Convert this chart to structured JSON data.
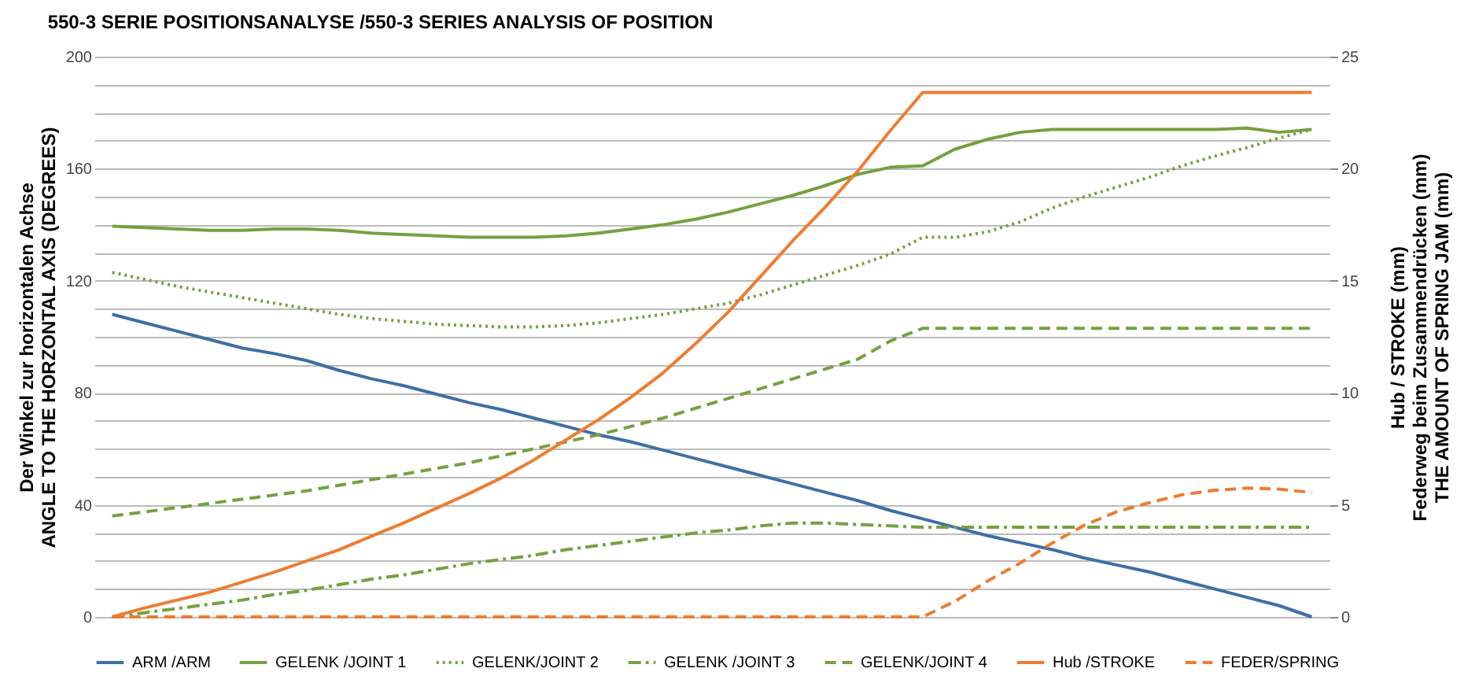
{
  "chart_data": {
    "type": "line",
    "title": "550-3  SERIE POSITIONSANALYSE /550-3 SERIES ANALYSIS OF POSITION",
    "ylabel": "Der Winkel zur horizontalen Achse\nANGLE TO THE HORZONTAL AXIS  (DEGREES)",
    "y2label": "Hub  / STROKE  (mm)\nFederweg beim Zusammendrücken (mm)\nTHE AMOUNT OF SPRING JAM (mm)",
    "categories": [
      null,
      null,
      null,
      null,
      null,
      null,
      null,
      null,
      null,
      null,
      null,
      null,
      null,
      null,
      null,
      null,
      null,
      null,
      null,
      null,
      null,
      null,
      null,
      null,
      null,
      null,
      null,
      null,
      null,
      null,
      null,
      null,
      null,
      null,
      null,
      null,
      null,
      null
    ],
    "ylim": [
      0,
      200
    ],
    "yticks": [
      0,
      40,
      80,
      120,
      160,
      200
    ],
    "y2lim": [
      0,
      25
    ],
    "y2ticks": [
      0,
      5,
      10,
      15,
      20,
      25
    ],
    "grid": true,
    "legend": "bottom",
    "tick_labels": "y",
    "series": [
      {
        "name": "ARM /ARM",
        "color": "#3f6ea5",
        "line_style": "solid",
        "values": [
          108,
          105,
          102,
          99,
          96,
          94,
          91.5,
          88,
          85,
          82.5,
          79.5,
          76.5,
          74,
          71,
          68,
          65,
          62.5,
          59.5,
          56.5,
          53.5,
          50.5,
          47.5,
          44.5,
          41.5,
          38,
          35,
          32,
          29,
          26.5,
          24,
          21,
          18.5,
          16,
          13,
          10,
          7,
          4,
          0
        ]
      },
      {
        "name": "GELENK /JOINT 1",
        "color": "#77a040",
        "line_style": "solid",
        "values": [
          139.5,
          139,
          138.5,
          138,
          138,
          138.5,
          138.5,
          138,
          137,
          136.5,
          136,
          135.5,
          135.5,
          135.5,
          136,
          137,
          138.5,
          140,
          142,
          144.5,
          147.5,
          150.5,
          154,
          158,
          160.5,
          161,
          167,
          170.5,
          173,
          174,
          174,
          174,
          174,
          174,
          174,
          174.5,
          173,
          174
        ]
      },
      {
        "name": "GELENK/JOINT 2",
        "color": "#77a040",
        "line_style": "dotted",
        "values": [
          123,
          120.5,
          118,
          116,
          114,
          112,
          110,
          108,
          106.5,
          105.5,
          104.5,
          104,
          103.5,
          103.5,
          104,
          105,
          106.5,
          108,
          110,
          112,
          115,
          118.5,
          122,
          125.5,
          129.5,
          135.5,
          135.5,
          137.5,
          141,
          146,
          150,
          153.5,
          157,
          161,
          164.5,
          167.5,
          171,
          174
        ]
      },
      {
        "name": "GELENK /JOINT 3",
        "color": "#77a040",
        "line_style": "dashdot",
        "values": [
          0,
          1.5,
          3,
          4.5,
          6,
          8,
          9.5,
          11.5,
          13.5,
          15,
          17,
          19,
          20.5,
          22,
          24,
          25.5,
          27,
          28.5,
          30,
          31,
          32.5,
          33.5,
          33.5,
          33,
          32.5,
          32,
          32,
          32,
          32,
          32,
          32,
          32,
          32,
          32,
          32,
          32,
          32,
          32
        ]
      },
      {
        "name": "GELENK/JOINT 4",
        "color": "#77a040",
        "line_style": "dashed",
        "values": [
          36,
          37.5,
          39,
          40.5,
          42,
          43.5,
          45,
          47,
          49,
          51,
          53,
          55,
          57.5,
          60,
          62.5,
          65,
          68,
          71,
          74.5,
          78,
          81.5,
          85,
          88.5,
          92,
          98.5,
          103,
          103,
          103,
          103,
          103,
          103,
          103,
          103,
          103,
          103,
          103,
          103,
          103
        ]
      },
      {
        "name": "Hub /STROKE",
        "color": "#ed7d31",
        "line_style": "solid",
        "axis": "y2",
        "values": [
          0,
          0.4,
          0.75,
          1.1,
          1.55,
          2.0,
          2.5,
          3.0,
          3.6,
          4.2,
          4.85,
          5.5,
          6.2,
          7.0,
          7.9,
          8.8,
          9.8,
          10.9,
          12.2,
          13.6,
          15.2,
          16.8,
          18.3,
          19.9,
          21.7,
          23.4,
          23.4,
          23.4,
          23.4,
          23.4,
          23.4,
          23.4,
          23.4,
          23.4,
          23.4,
          23.4,
          23.4,
          23.4
        ]
      },
      {
        "name": "FEDER/SPRING",
        "color": "#ed7d31",
        "line_style": "dashed",
        "axis": "y2",
        "values": [
          0,
          0,
          0,
          0,
          0,
          0,
          0,
          0,
          0,
          0,
          0,
          0,
          0,
          0,
          0,
          0,
          0,
          0,
          0,
          0,
          0,
          0,
          0,
          0,
          0,
          0,
          0.7,
          1.6,
          2.4,
          3.3,
          4.1,
          4.7,
          5.1,
          5.45,
          5.65,
          5.75,
          5.7,
          5.55
        ]
      }
    ]
  }
}
